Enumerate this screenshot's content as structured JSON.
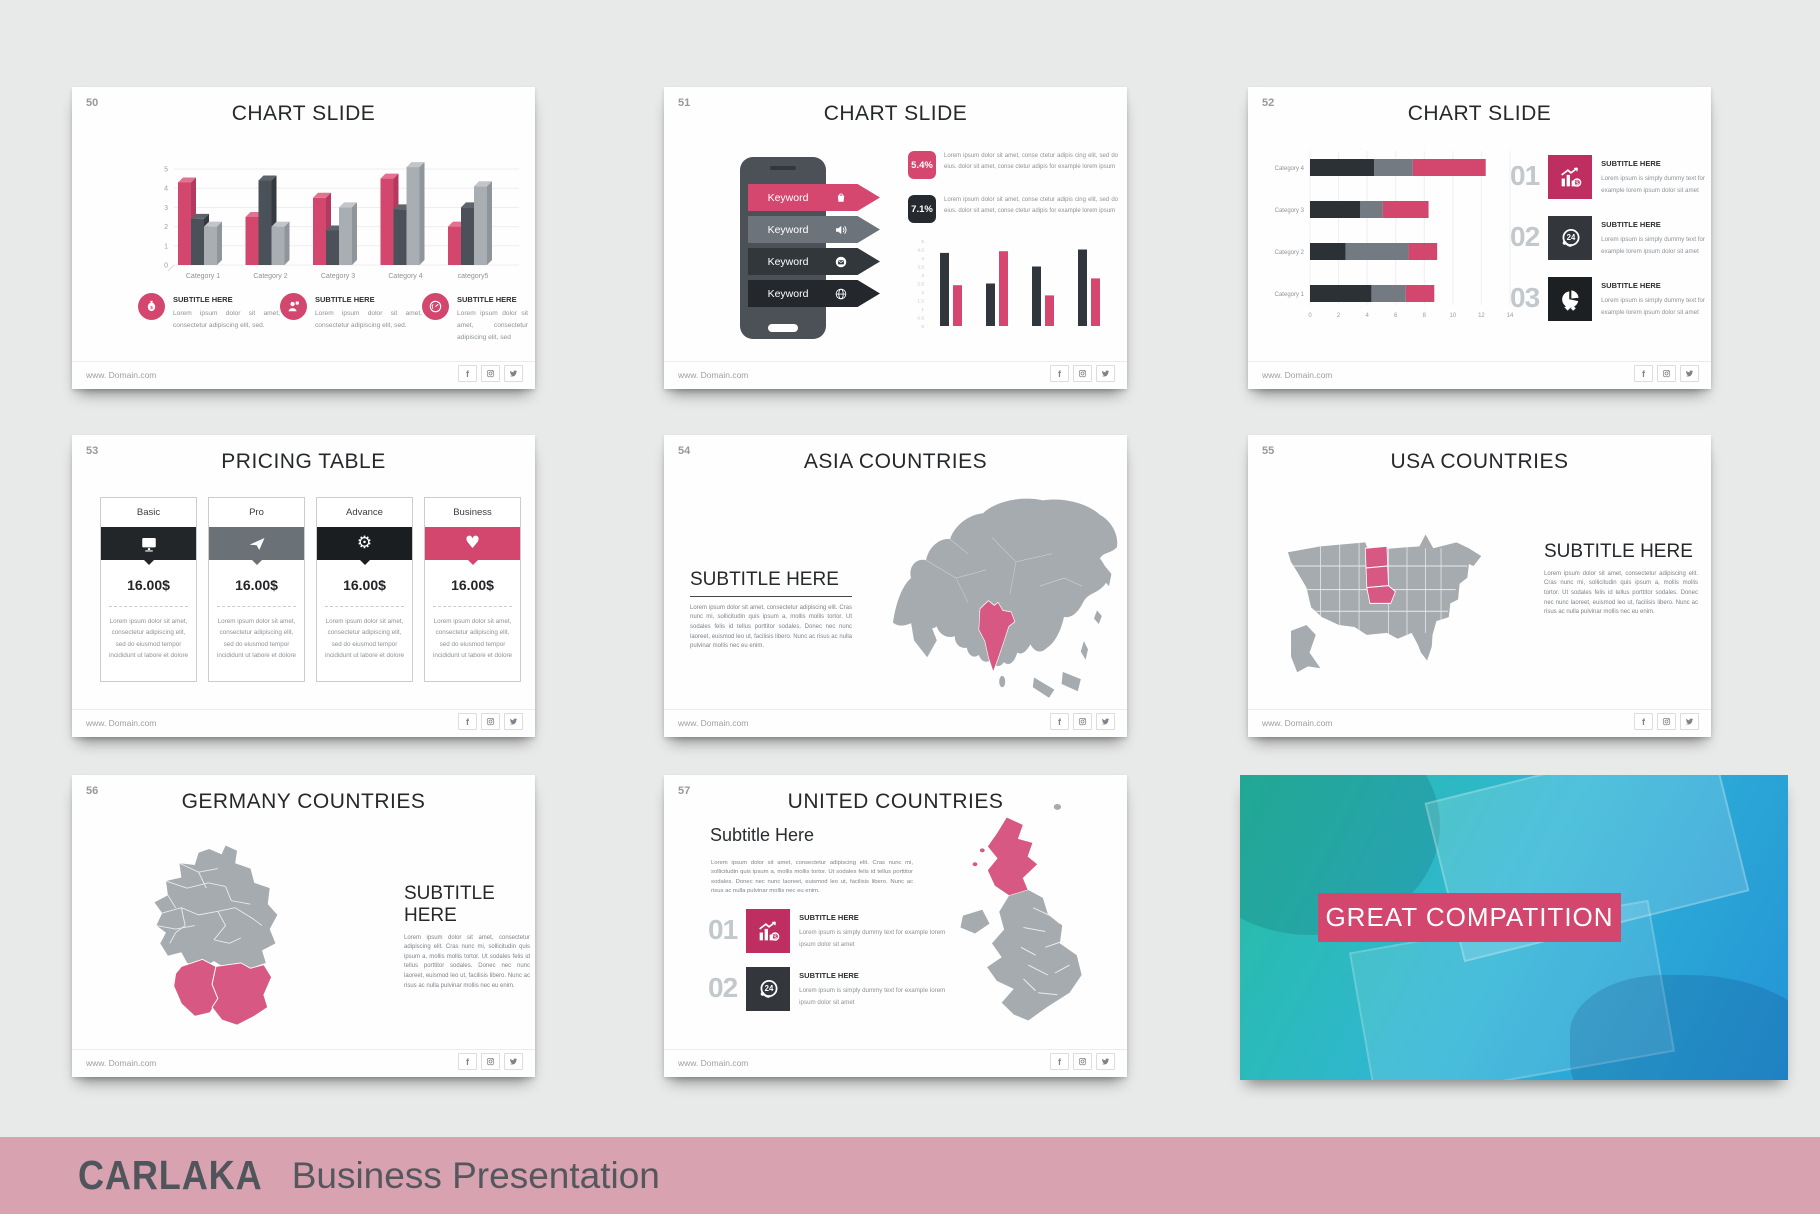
{
  "colors": {
    "accent_pink": "#d3476f",
    "map_highlight": "#d75983",
    "dark": "#2c3136",
    "mid_gray": "#70777f",
    "light_gray": "#a9aeb3",
    "canvas_bg": "#e8e9e9",
    "footer_bg": "#d8a2b1",
    "photo_overlay_from": "#27bda2",
    "photo_overlay_to": "#2493d6"
  },
  "common": {
    "domain": "www. Domain.com",
    "social_icons": [
      "facebook",
      "instagram",
      "twitter"
    ]
  },
  "footer": {
    "brand": "CARLAKA",
    "subtitle": "Business Presentation"
  },
  "slides": {
    "s50": {
      "number": "50",
      "title": "CHART SLIDE",
      "features": [
        {
          "icon": "money-bag",
          "title": "SUBTITLE HERE",
          "text": "Lorem ipsum dolor sit amet, consectetur adipiscing elit, sed."
        },
        {
          "icon": "user",
          "title": "SUBTITLE HERE",
          "text": "Lorem ipsum dolor sit amet, consectetur adipiscing elit, sed."
        },
        {
          "icon": "gauge",
          "title": "SUBTITLE HERE",
          "text": "Lorem ipsum dolor sit amet, consectetur adipiscing elit, sed"
        }
      ]
    },
    "s51": {
      "number": "51",
      "title": "CHART SLIDE",
      "keywords": [
        {
          "label": "Keyword",
          "icon": "cart"
        },
        {
          "label": "Keyword",
          "icon": "speaker"
        },
        {
          "label": "Keyword",
          "icon": "mail"
        },
        {
          "label": "Keyword",
          "icon": "globe"
        }
      ],
      "stats": [
        {
          "value": "5.4%",
          "text": "Lorem ipsum dolor sit amet, conse ctetur adipis cing elit, sed do eius. dolor sit amet, conse ctetur adipis for example lorem ipsum"
        },
        {
          "value": "7.1%",
          "text": "Lorem ipsum dolor sit amet, conse ctetur adipis cing elit, sed do eius. dolor sit amet, conse ctetur adipis for example lorem ipsum"
        }
      ]
    },
    "s52": {
      "number": "52",
      "title": "CHART SLIDE",
      "items": [
        {
          "num": "01",
          "icon": "chart-growth",
          "title": "SUBTITLE HERE",
          "text": "Lorem ipsum is simply dummy text for example lorem ipsum dolor sit amet"
        },
        {
          "num": "02",
          "icon": "support-24",
          "title": "SUBTITLE HERE",
          "text": "Lorem ipsum is simply dummy text for example lorem ipsum dolor sit amet"
        },
        {
          "num": "03",
          "icon": "pie-settings",
          "title": "SUBTITLE HERE",
          "text": "Lorem ipsum is simply dummy text for example lorem ipsum dolor sit amet"
        }
      ]
    },
    "s53": {
      "number": "53",
      "title": "PRICING TABLE",
      "plans": [
        {
          "name": "Basic",
          "icon": "monitor",
          "price": "16.00$",
          "desc": "Lorem ipsum dolor sit amet, consectetur adipiscing elit, sed do eiusmod tempor incididunt ut labore et dolore"
        },
        {
          "name": "Pro",
          "icon": "paper-plane",
          "price": "16.00$",
          "desc": "Lorem ipsum dolor sit amet, consectetur adipiscing elit, sed do eiusmod tempor incididunt ut labore et dolore"
        },
        {
          "name": "Advance",
          "icon": "gear",
          "price": "16.00$",
          "desc": "Lorem ipsum dolor sit amet, consectetur adipiscing elit, sed do eiusmod tempor incididunt ut labore et dolore"
        },
        {
          "name": "Business",
          "icon": "heart",
          "price": "16.00$",
          "desc": "Lorem ipsum dolor sit amet, consectetur adipiscing elit, sed do eiusmod tempor incididunt ut labore et dolore"
        }
      ]
    },
    "s54": {
      "number": "54",
      "title": "ASIA COUNTRIES",
      "subtitle": "SUBTITLE HERE",
      "text": "Lorem ipsum dolor sit amet, consectetur adipiscing elit. Cras nunc mi, sollicitudin quis ipsum a, mollis mollis tortor. Ut sodales felis id tellus porttitor sodales. Donec nec nunc laoreet, euismod leo ut, facilisis libero. Nunc ac risus ac nulla pulvinar mollis nec eu enim.",
      "highlighted_region": "India"
    },
    "s55": {
      "number": "55",
      "title": "USA COUNTRIES",
      "subtitle": "SUBTITLE HERE",
      "text": "Lorem ipsum dolor sit amet, consectetur adipiscing elit. Cras nunc mi, sollicitudin quis ipsum a, mollis mollis tortor. Ut sodales felis id tellus porttitor sodales. Donec nec nunc laoreet, euismod leo ut, facilisis libero. Nunc ac risus ac nulla pulvinar mollis nec eu enim.",
      "highlighted_region": "North Dakota, South Dakota, Nebraska"
    },
    "s56": {
      "number": "56",
      "title": "GERMANY COUNTRIES",
      "subtitle": "SUBTITLE HERE",
      "text": "Lorem ipsum dolor sit amet, consectetur adipiscing elit. Cras nunc mi, sollicitudin quis ipsum a, mollis mollis tortor. Ut sodales felis id tellus porttitor sodales. Donec nec nunc laoreet, euismod leo ut, facilisis libero. Nunc ac risus ac nulla pulvinar mollis nec eu enim.",
      "highlighted_region": "Southern Germany"
    },
    "s57": {
      "number": "57",
      "title": "UNITED COUNTRIES",
      "subtitle": "Subtitle Here",
      "text": "Lorem ipsum dolor sit amet, consectetur adipiscing elit. Cras nunc mi, sollicitudin quis ipsum a, mollis mollis tortor. Ut sodales felis id tellus porttitor sodales. Donec nec nunc laoreet, euismod leo ut, facilisis libero. Nunc ac risus ac nulla pulvinar mollis nec eu enim.",
      "highlighted_region": "Scotland",
      "items": [
        {
          "num": "01",
          "icon": "chart-growth",
          "title": "SUBTITLE HERE",
          "text": "Lorem ipsum is simply dummy text for example lorem ipsum dolor sit amet"
        },
        {
          "num": "02",
          "icon": "support-24",
          "title": "SUBTITLE HERE",
          "text": "Lorem ipsum is simply dummy text for example lorem ipsum dolor sit amet"
        }
      ]
    },
    "s_image": {
      "banner": "GREAT COMPATITION"
    }
  },
  "chart_data": [
    {
      "slide": "50",
      "type": "bar",
      "variant": "3d-grouped",
      "categories": [
        "Category 1",
        "Category 2",
        "Category 3",
        "Category 4",
        "category5"
      ],
      "series": [
        {
          "name": "Series 1",
          "color": "#d3476f",
          "top": "#e2728f",
          "side": "#b23a5e",
          "values": [
            4.3,
            2.5,
            3.5,
            4.5,
            2.0
          ]
        },
        {
          "name": "Series 2",
          "color": "#4a5158",
          "top": "#5d646c",
          "side": "#343a40",
          "values": [
            2.4,
            4.4,
            1.8,
            2.9,
            3.0
          ]
        },
        {
          "name": "Series 3",
          "color": "#a9aeb3",
          "top": "#c2c6ca",
          "side": "#8f959a",
          "values": [
            2.0,
            2.0,
            3.0,
            5.1,
            4.1
          ]
        }
      ],
      "ylim": [
        0,
        5
      ],
      "yticks": [
        0,
        1,
        2,
        3,
        4,
        5
      ],
      "grid": true,
      "legend": false
    },
    {
      "slide": "51",
      "type": "bar",
      "variant": "paired",
      "categories": [
        "",
        "",
        "",
        ""
      ],
      "series": [
        {
          "name": "Series 1",
          "color": "#31363c",
          "values": [
            4.3,
            2.5,
            3.5,
            4.5
          ]
        },
        {
          "name": "Series 2",
          "color": "#d5476f",
          "values": [
            2.4,
            4.4,
            1.8,
            2.8
          ]
        }
      ],
      "ylim": [
        0,
        5
      ],
      "yticks": [
        0,
        0.5,
        1,
        1.5,
        2,
        2.5,
        3,
        3.5,
        4,
        4.5,
        5
      ],
      "grid": false,
      "legend": false
    },
    {
      "slide": "52",
      "type": "bar",
      "variant": "stacked-horizontal",
      "categories": [
        "Category 4",
        "Category 3",
        "Category 2",
        "Category 1"
      ],
      "series": [
        {
          "name": "Series 1",
          "color": "#2c3136",
          "values": [
            4.5,
            3.5,
            2.5,
            4.3
          ]
        },
        {
          "name": "Series 2",
          "color": "#737a82",
          "values": [
            2.7,
            1.6,
            4.4,
            2.4
          ]
        },
        {
          "name": "Series 3",
          "color": "#d3476f",
          "values": [
            5.1,
            3.2,
            2.0,
            2.0
          ]
        }
      ],
      "xlim": [
        0,
        14
      ],
      "xticks": [
        0,
        2,
        4,
        6,
        8,
        10,
        12,
        14
      ],
      "grid": true,
      "legend": false
    }
  ]
}
